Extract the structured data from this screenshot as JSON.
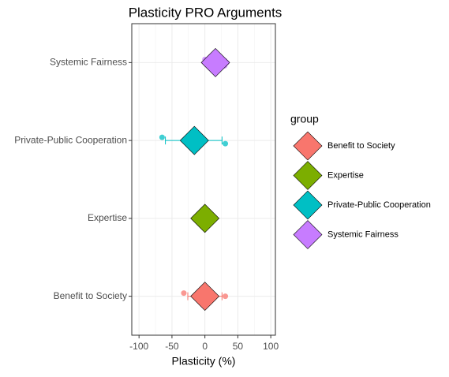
{
  "chart_data": {
    "type": "dotplot",
    "title": "Plasticity PRO Arguments",
    "x_label": "Plasticity (%)",
    "legend_title": "group",
    "categories": [
      "Benefit to Society",
      "Expertise",
      "Private-Public Cooperation",
      "Systemic Fairness"
    ],
    "series": [
      {
        "name": "Benefit to Society",
        "color": "#F8766D",
        "mean": 0,
        "lower": -26,
        "upper": 26,
        "points": [
          -32,
          31
        ]
      },
      {
        "name": "Expertise",
        "color": "#7CAE00",
        "mean": 0,
        "lower": 0,
        "upper": 0,
        "points": [
          0
        ]
      },
      {
        "name": "Private-Public Cooperation",
        "color": "#00BFC4",
        "mean": -16,
        "lower": -60,
        "upper": 26,
        "points": [
          -65,
          -32,
          31
        ]
      },
      {
        "name": "Systemic Fairness",
        "color": "#C77CFF",
        "mean": 16,
        "lower": 0,
        "upper": 33,
        "points": [
          0,
          33,
          30
        ]
      }
    ],
    "xlim": [
      -111,
      107
    ],
    "xticks": [
      -100,
      -50,
      0,
      50,
      100
    ],
    "grid": true
  }
}
